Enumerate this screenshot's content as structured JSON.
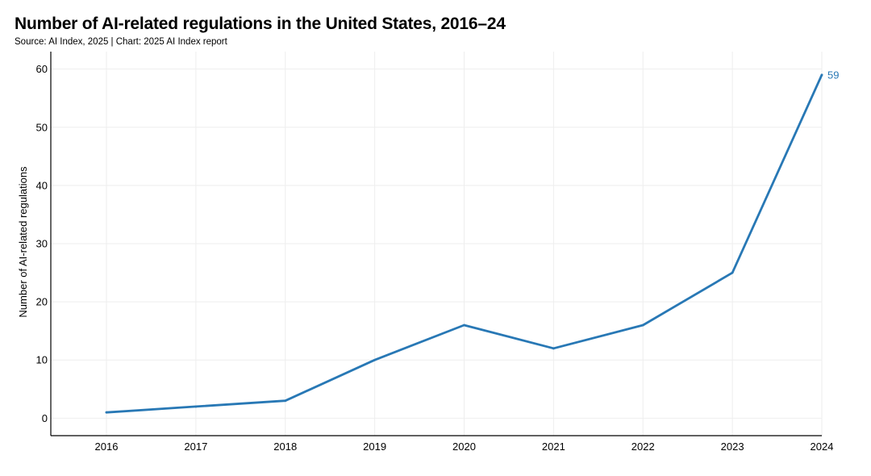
{
  "header": {
    "title": "Number of AI-related regulations in the United States, 2016–24",
    "subtitle": "Source: AI Index, 2025 | Chart: 2025 AI Index report"
  },
  "colors": {
    "line": "#2878b5",
    "grid": "#eeeeee",
    "axis": "#000000"
  },
  "chart_data": {
    "type": "line",
    "title": "Number of AI-related regulations in the United States, 2016–24",
    "xlabel": "",
    "ylabel": "Number of AI-related regulations",
    "x": [
      "2016",
      "2017",
      "2018",
      "2019",
      "2020",
      "2021",
      "2022",
      "2023",
      "2024"
    ],
    "series": [
      {
        "name": "AI-related regulations",
        "values": [
          1,
          2,
          3,
          10,
          16,
          12,
          16,
          25,
          59
        ]
      }
    ],
    "yticks": [
      0,
      10,
      20,
      30,
      40,
      50,
      60
    ],
    "ylim": [
      -3,
      63
    ],
    "grid": true,
    "end_label": "59"
  }
}
